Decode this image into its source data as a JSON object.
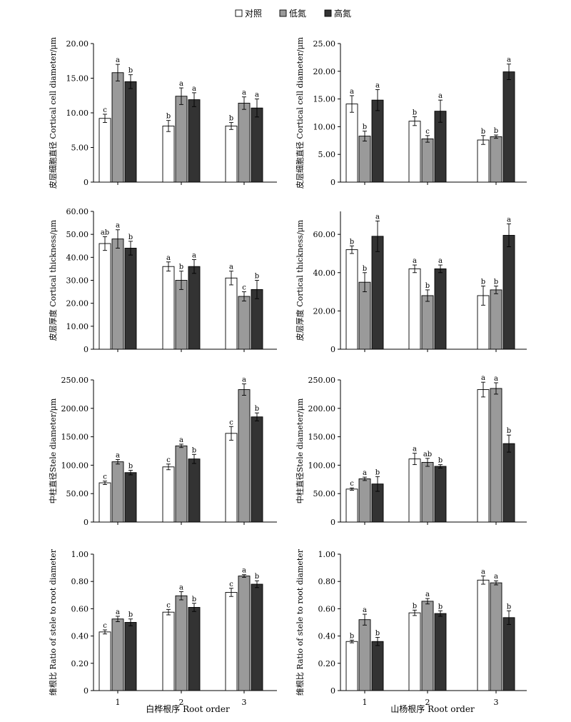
{
  "legend": [
    {
      "label": "对照",
      "color": "#ffffff"
    },
    {
      "label": "低氮",
      "color": "#9a9a9a"
    },
    {
      "label": "高氮",
      "color": "#333333"
    }
  ],
  "x_labels": [
    "白桦根序 Root order",
    "山杨根序 Root order"
  ],
  "chart_data": [
    {
      "type": "bar",
      "ylabel": "皮层细胞直径 Cortical cell diameter/μm",
      "ylim": [
        0,
        20
      ],
      "yticks": [
        0,
        5,
        10,
        15,
        20
      ],
      "ytick_labels": [
        "0",
        "5.00",
        "10.00",
        "15.00",
        "20.00"
      ],
      "categories": [
        "1",
        "2",
        "3"
      ],
      "series": [
        {
          "name": "对照",
          "values": [
            9.2,
            8.1,
            8.1
          ],
          "errors": [
            0.6,
            0.8,
            0.5
          ],
          "letters": [
            "c",
            "b",
            "b"
          ]
        },
        {
          "name": "低氮",
          "values": [
            15.8,
            12.4,
            11.4
          ],
          "errors": [
            1.2,
            1.2,
            0.9
          ],
          "letters": [
            "a",
            "a",
            "a"
          ]
        },
        {
          "name": "高氮",
          "values": [
            14.5,
            11.9,
            10.7
          ],
          "errors": [
            1.0,
            1.0,
            1.3
          ],
          "letters": [
            "b",
            "a",
            "a"
          ]
        }
      ]
    },
    {
      "type": "bar",
      "ylabel": "皮层细胞直径 Cortical cell diameter/μm",
      "ylim": [
        0,
        25
      ],
      "yticks": [
        0,
        5,
        10,
        15,
        20,
        25
      ],
      "ytick_labels": [
        "0",
        "5.00",
        "10.00",
        "15.00",
        "20.00",
        "25.00"
      ],
      "categories": [
        "1",
        "2",
        "3"
      ],
      "series": [
        {
          "name": "对照",
          "values": [
            14.1,
            11.0,
            7.6
          ],
          "errors": [
            1.5,
            0.8,
            0.8
          ],
          "letters": [
            "a",
            "b",
            "b"
          ]
        },
        {
          "name": "低氮",
          "values": [
            8.3,
            7.8,
            8.2
          ],
          "errors": [
            0.9,
            0.6,
            0.3
          ],
          "letters": [
            "b",
            "c",
            "b"
          ]
        },
        {
          "name": "高氮",
          "values": [
            14.8,
            12.8,
            19.9
          ],
          "errors": [
            1.9,
            2.0,
            1.4
          ],
          "letters": [
            "a",
            "a",
            "a"
          ]
        }
      ]
    },
    {
      "type": "bar",
      "ylabel": "皮层厚度 Cortical thickness/μm",
      "ylim": [
        0,
        60
      ],
      "yticks": [
        0,
        10,
        20,
        30,
        40,
        50,
        60
      ],
      "ytick_labels": [
        "0",
        "10.00",
        "20.00",
        "30.00",
        "40.00",
        "50.00",
        "60.00"
      ],
      "categories": [
        "1",
        "2",
        "3"
      ],
      "series": [
        {
          "name": "对照",
          "values": [
            46.0,
            36.0,
            31.0
          ],
          "errors": [
            3.0,
            2.0,
            3.0
          ],
          "letters": [
            "ab",
            "a",
            "a"
          ]
        },
        {
          "name": "低氮",
          "values": [
            48.0,
            30.0,
            23.0
          ],
          "errors": [
            4.0,
            4.0,
            2.0
          ],
          "letters": [
            "a",
            "b",
            "c"
          ]
        },
        {
          "name": "高氮",
          "values": [
            44.0,
            36.0,
            26.0
          ],
          "errors": [
            3.0,
            3.0,
            4.0
          ],
          "letters": [
            "b",
            "a",
            "b"
          ]
        }
      ]
    },
    {
      "type": "bar",
      "ylabel": "皮层厚度 Cortical thickness/μm",
      "ylim": [
        0,
        72
      ],
      "yticks": [
        0,
        20,
        40,
        60
      ],
      "ytick_labels": [
        "0",
        "20.00",
        "40.00",
        "60.00"
      ],
      "categories": [
        "1",
        "2",
        "3"
      ],
      "series": [
        {
          "name": "对照",
          "values": [
            52.0,
            42.0,
            28.0
          ],
          "errors": [
            2.0,
            2.0,
            5.0
          ],
          "letters": [
            "b",
            "a",
            "b"
          ]
        },
        {
          "name": "低氮",
          "values": [
            35.0,
            28.0,
            31.0
          ],
          "errors": [
            5.0,
            3.0,
            2.0
          ],
          "letters": [
            "b",
            "b",
            "b"
          ]
        },
        {
          "name": "高氮",
          "values": [
            59.0,
            42.0,
            59.5
          ],
          "errors": [
            8.0,
            2.0,
            6.0
          ],
          "letters": [
            "a",
            "a",
            "a"
          ]
        }
      ]
    },
    {
      "type": "bar",
      "ylabel": "中柱直径Stele diameter/μm",
      "ylim": [
        0,
        250
      ],
      "yticks": [
        0,
        50,
        100,
        150,
        200,
        250
      ],
      "ytick_labels": [
        "0",
        "50.00",
        "100.00",
        "150.00",
        "200.00",
        "250.00"
      ],
      "categories": [
        "1",
        "2",
        "3"
      ],
      "series": [
        {
          "name": "对照",
          "values": [
            69.0,
            97.0,
            156.0
          ],
          "errors": [
            3.0,
            5.0,
            12.0
          ],
          "letters": [
            "c",
            "c",
            "c"
          ]
        },
        {
          "name": "低氮",
          "values": [
            106.0,
            134.0,
            233.0
          ],
          "errors": [
            4.0,
            3.0,
            10.0
          ],
          "letters": [
            "a",
            "a",
            "a"
          ]
        },
        {
          "name": "高氮",
          "values": [
            87.0,
            111.0,
            185.0
          ],
          "errors": [
            4.0,
            8.0,
            7.0
          ],
          "letters": [
            "b",
            "b",
            "b"
          ]
        }
      ]
    },
    {
      "type": "bar",
      "ylabel": "中柱直径Stele diameter/μm",
      "ylim": [
        0,
        250
      ],
      "yticks": [
        0,
        50,
        100,
        150,
        200,
        250
      ],
      "ytick_labels": [
        "0",
        "50.00",
        "100.00",
        "150.00",
        "200.00",
        "250.00"
      ],
      "categories": [
        "1",
        "2",
        "3"
      ],
      "series": [
        {
          "name": "对照",
          "values": [
            58.0,
            111.0,
            233.0
          ],
          "errors": [
            2.0,
            10.0,
            13.0
          ],
          "letters": [
            "c",
            "a",
            "a"
          ]
        },
        {
          "name": "低氮",
          "values": [
            76.0,
            105.0,
            235.0
          ],
          "errors": [
            3.0,
            7.0,
            10.0
          ],
          "letters": [
            "a",
            "ab",
            "a"
          ]
        },
        {
          "name": "高氮",
          "values": [
            67.0,
            98.0,
            138.0
          ],
          "errors": [
            13.0,
            3.0,
            15.0
          ],
          "letters": [
            "b",
            "b",
            "b"
          ]
        }
      ]
    },
    {
      "type": "bar",
      "ylabel": "维根比 Ratio of stele to root diameter",
      "ylim": [
        0,
        1
      ],
      "yticks": [
        0,
        0.2,
        0.4,
        0.6,
        0.8,
        1.0
      ],
      "ytick_labels": [
        "0",
        "0.20",
        "0.40",
        "0.60",
        "0.80",
        "1.00"
      ],
      "categories": [
        "1",
        "2",
        "3"
      ],
      "series": [
        {
          "name": "对照",
          "values": [
            0.43,
            0.575,
            0.72
          ],
          "errors": [
            0.015,
            0.02,
            0.03
          ],
          "letters": [
            "c",
            "c",
            "c"
          ]
        },
        {
          "name": "低氮",
          "values": [
            0.525,
            0.695,
            0.84
          ],
          "errors": [
            0.02,
            0.03,
            0.01
          ],
          "letters": [
            "a",
            "a",
            "a"
          ]
        },
        {
          "name": "高氮",
          "values": [
            0.5,
            0.61,
            0.78
          ],
          "errors": [
            0.025,
            0.03,
            0.025
          ],
          "letters": [
            "b",
            "b",
            "b"
          ]
        }
      ]
    },
    {
      "type": "bar",
      "ylabel": "维根比 Ratio of stele to root diameter",
      "ylim": [
        0,
        1
      ],
      "yticks": [
        0,
        0.2,
        0.4,
        0.6,
        0.8,
        1.0
      ],
      "ytick_labels": [
        "0",
        "0.20",
        "0.40",
        "0.60",
        "0.80",
        "1.00"
      ],
      "categories": [
        "1",
        "2",
        "3"
      ],
      "series": [
        {
          "name": "对照",
          "values": [
            0.36,
            0.57,
            0.81
          ],
          "errors": [
            0.01,
            0.02,
            0.03
          ],
          "letters": [
            "b",
            "b",
            "a"
          ]
        },
        {
          "name": "低氮",
          "values": [
            0.52,
            0.655,
            0.79
          ],
          "errors": [
            0.04,
            0.02,
            0.015
          ],
          "letters": [
            "a",
            "a",
            "a"
          ]
        },
        {
          "name": "高氮",
          "values": [
            0.36,
            0.565,
            0.535
          ],
          "errors": [
            0.03,
            0.02,
            0.05
          ],
          "letters": [
            "b",
            "b",
            "b"
          ]
        }
      ]
    }
  ]
}
